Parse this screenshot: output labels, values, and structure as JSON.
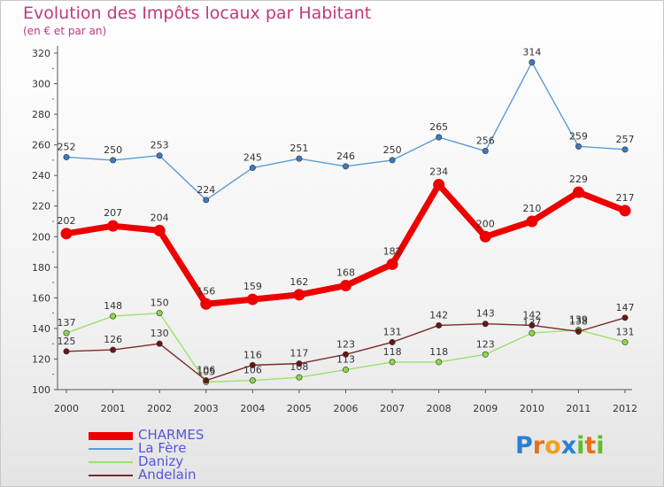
{
  "header": {
    "title": "Evolution des Impôts locaux par Habitant",
    "subtitle": "(en € et par an)"
  },
  "logo": {
    "text": "Proxiti",
    "letters": [
      "P",
      "r",
      "o",
      "x",
      "i",
      "t",
      "i"
    ],
    "colors": [
      "#2a7fd4",
      "#e8701a",
      "#f0a020",
      "#2a7fd4",
      "#5bbf2a",
      "#e8701a",
      "#5bbf2a"
    ]
  },
  "chart_data": {
    "type": "line",
    "title": "Evolution des Impôts locaux par Habitant",
    "subtitle": "(en € et par an)",
    "xlabel": "",
    "ylabel": "",
    "ylim": [
      100,
      320
    ],
    "yticks": [
      100,
      120,
      140,
      160,
      180,
      200,
      220,
      240,
      260,
      280,
      300,
      320
    ],
    "grid": false,
    "legend_position": "bottom-left",
    "x": [
      "2000",
      "2001",
      "2002",
      "2003",
      "2004",
      "2005",
      "2006",
      "2007",
      "2008",
      "2009",
      "2010",
      "2011",
      "2012"
    ],
    "series": [
      {
        "name": "La Fère",
        "color": "#5b9bd5",
        "marker": "#3a7ac0",
        "values": [
          252,
          250,
          253,
          224,
          245,
          251,
          246,
          250,
          265,
          256,
          314,
          259,
          257
        ]
      },
      {
        "name": "Danizy",
        "color": "#9ee06a",
        "marker": "#8ad84a",
        "values": [
          137,
          148,
          150,
          105,
          106,
          108,
          113,
          118,
          118,
          123,
          137,
          139,
          131
        ]
      },
      {
        "name": "Andelain",
        "color": "#7a2a2a",
        "marker": "#6a1515",
        "values": [
          125,
          126,
          130,
          106,
          116,
          117,
          123,
          131,
          142,
          143,
          142,
          138,
          147
        ]
      },
      {
        "name": "CHARMES",
        "color": "#ee0000",
        "marker": "#ee0000",
        "values": [
          202,
          207,
          204,
          156,
          159,
          162,
          168,
          182,
          234,
          200,
          210,
          229,
          217
        ]
      }
    ]
  }
}
